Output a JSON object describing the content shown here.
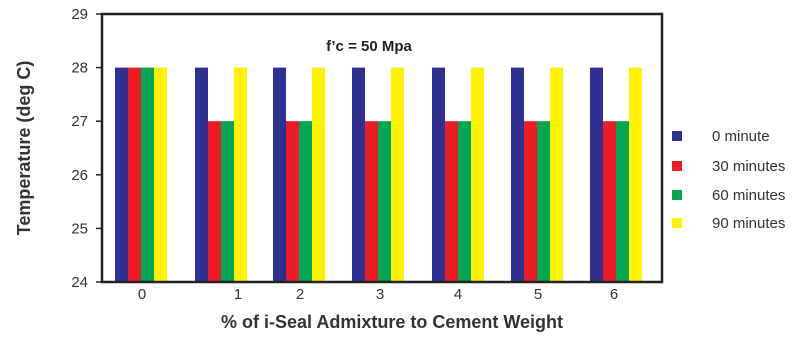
{
  "chart_data": {
    "type": "bar",
    "categories": [
      "0",
      "1",
      "2",
      "3",
      "4",
      "5",
      "6"
    ],
    "series": [
      {
        "name": "0 minute",
        "color": "#2e3192",
        "values": [
          28,
          28,
          28,
          28,
          28,
          28,
          28
        ]
      },
      {
        "name": "30 minutes",
        "color": "#ed1c24",
        "values": [
          28,
          27,
          27,
          27,
          27,
          27,
          27
        ]
      },
      {
        "name": "60 minutes",
        "color": "#00a651",
        "values": [
          28,
          27,
          27,
          27,
          27,
          27,
          27
        ]
      },
      {
        "name": "90 minutes",
        "color": "#fff200",
        "values": [
          28,
          28,
          28,
          28,
          28,
          28,
          28
        ]
      }
    ],
    "xlabel": "% of i-Seal Admixture to Cement Weight",
    "ylabel": "Temperature (deg C)",
    "ylim": [
      24,
      29
    ],
    "yticks": [
      24,
      25,
      26,
      27,
      28,
      29
    ],
    "annotation": "f’c = 50 Mpa",
    "grid": false,
    "legend_position": "right"
  }
}
